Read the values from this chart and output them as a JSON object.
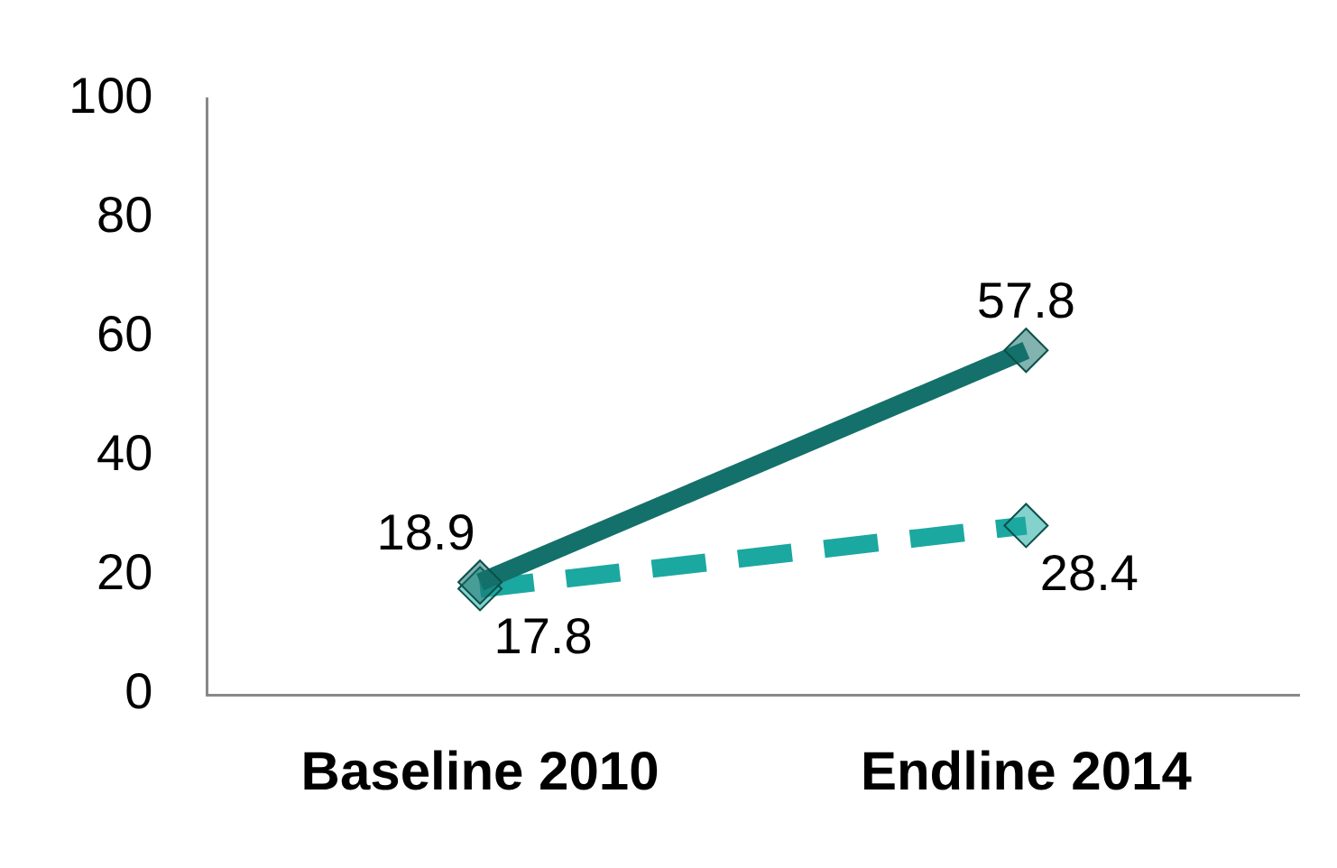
{
  "chart_data": {
    "type": "line",
    "categories": [
      "Baseline 2010",
      "Endline 2014"
    ],
    "series": [
      {
        "color": "#14706a",
        "values": [
          18.9,
          57.8
        ],
        "line_style": "solid"
      },
      {
        "color": "#1ba8a0",
        "values": [
          17.8,
          28.4
        ],
        "line_style": "dashed"
      }
    ],
    "ylim": [
      0,
      100
    ],
    "yticks": [
      0,
      20,
      40,
      60,
      80,
      100
    ],
    "grid": false,
    "legend": false,
    "marker": "diamond",
    "data_labels": true
  }
}
